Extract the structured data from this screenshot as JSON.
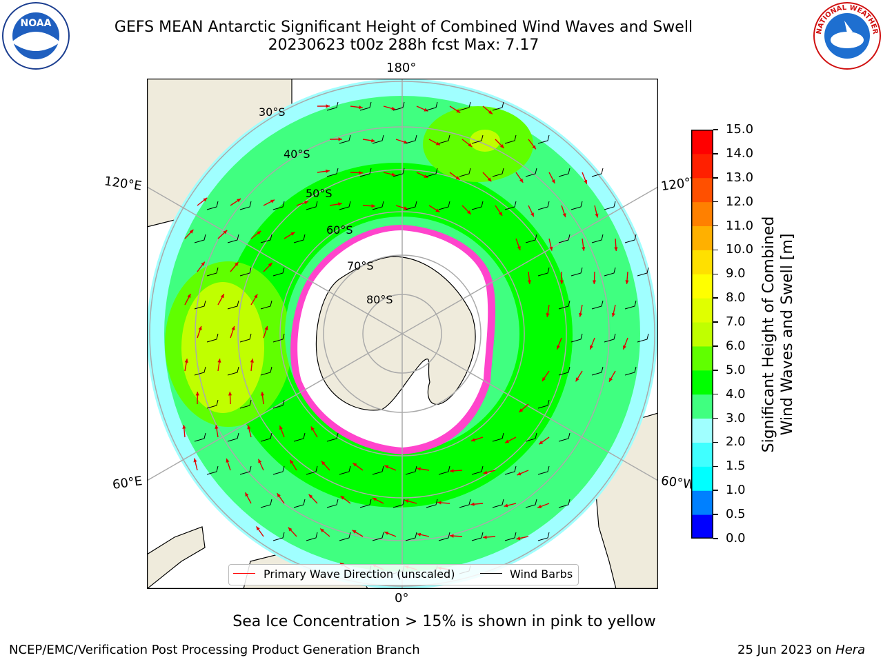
{
  "title_line1": "GEFS MEAN Antarctic Significant Height of Combined Wind Waves and Swell",
  "title_line2": "20230623 t00z 288h fcst   Max: 7.17",
  "map": {
    "longitude_labels": {
      "top": "180°",
      "bottom": "0°",
      "upper_left": "120°E",
      "upper_right": "120°W",
      "lower_left": "60°E",
      "lower_right": "60°W"
    },
    "latitude_labels": [
      "30°S",
      "40°S",
      "50°S",
      "60°S",
      "70°S",
      "80°S"
    ]
  },
  "legend": {
    "wave_direction": "Primary Wave Direction (unscaled)",
    "wind_barbs": "Wind Barbs",
    "wave_color": "#ff0000",
    "barb_color": "#000000"
  },
  "colorbar": {
    "label_line1": "Significant Height of Combined",
    "label_line2": "Wind Waves and Swell [m]",
    "ticks": [
      "0.0",
      "0.5",
      "1.0",
      "1.5",
      "2.0",
      "3.0",
      "4.0",
      "5.0",
      "6.0",
      "7.0",
      "8.0",
      "9.0",
      "10.0",
      "11.0",
      "12.0",
      "13.0",
      "14.0",
      "15.0"
    ],
    "colors": [
      "#0000ff",
      "#0080ff",
      "#00ffff",
      "#40ffff",
      "#a0ffff",
      "#40ff80",
      "#00ff00",
      "#60ff00",
      "#c0ff00",
      "#e0ff00",
      "#ffff00",
      "#ffe000",
      "#ffb000",
      "#ff8000",
      "#ff5000",
      "#ff2000",
      "#ff0000"
    ]
  },
  "sea_ice_note": "Sea Ice Concentration > 15% is shown in pink to yellow",
  "footer": {
    "left": "NCEP/EMC/Verification Post Processing Product Generation Branch",
    "date": "25 Jun 2023 on ",
    "host": "Hera"
  },
  "logos": {
    "noaa": "NOAA",
    "nws": "NATIONAL WEATHER SERVICE"
  }
}
